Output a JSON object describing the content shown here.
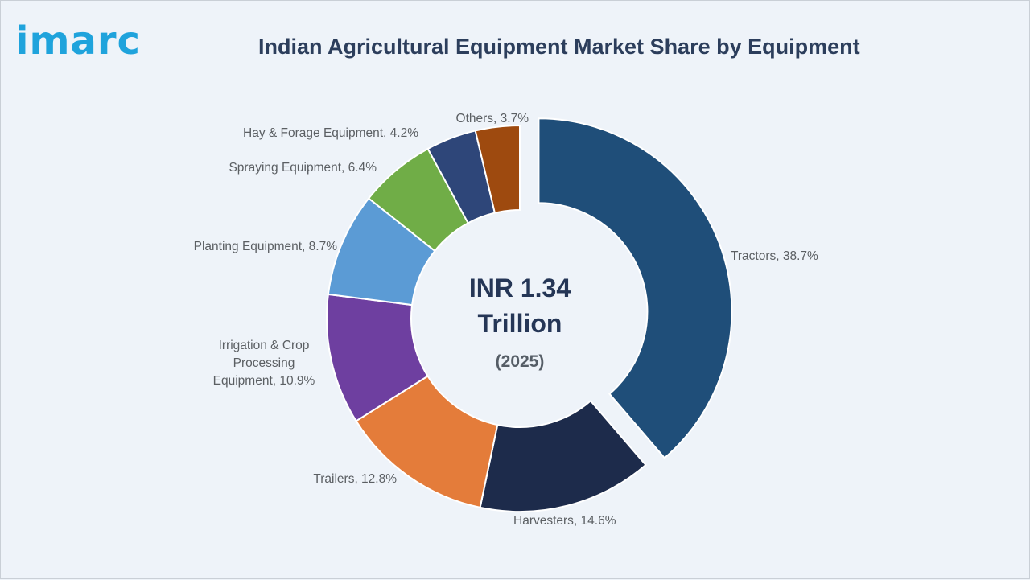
{
  "brand": {
    "logo_text": "imarc"
  },
  "colors": {
    "background": "#eef3f9",
    "title": "#2c3e5c",
    "logo": "#1fa3dc"
  },
  "chart_data": {
    "type": "donut",
    "title": "Indian Agricultural Equipment Market Share by Equipment",
    "center": {
      "value_line1": "INR 1.34",
      "value_line2": "Trillion",
      "year": "(2025)"
    },
    "unit": "%",
    "exploded": "Tractors",
    "slices": [
      {
        "label": "Tractors",
        "value": 38.7,
        "color": "#1f4e79",
        "label_lines": [
          "Tractors, 38.7%"
        ]
      },
      {
        "label": "Harvesters",
        "value": 14.6,
        "color": "#1d2b4b",
        "label_lines": [
          "Harvesters, 14.6%"
        ]
      },
      {
        "label": "Trailers",
        "value": 12.8,
        "color": "#e47c3a",
        "label_lines": [
          "Trailers, 12.8%"
        ]
      },
      {
        "label": "Irrigation & Crop Processing Equipment",
        "value": 10.9,
        "color": "#6e3fa0",
        "label_lines": [
          "Irrigation & Crop",
          "Processing",
          "Equipment, 10.9%"
        ]
      },
      {
        "label": "Planting Equipment",
        "value": 8.7,
        "color": "#5b9bd5",
        "label_lines": [
          "Planting Equipment, 8.7%"
        ]
      },
      {
        "label": "Spraying Equipment",
        "value": 6.4,
        "color": "#70ad47",
        "label_lines": [
          "Spraying Equipment, 6.4%"
        ]
      },
      {
        "label": "Hay & Forage Equipment",
        "value": 4.2,
        "color": "#2e4679",
        "label_lines": [
          "Hay & Forage Equipment, 4.2%"
        ]
      },
      {
        "label": "Others",
        "value": 3.7,
        "color": "#9e4a0f",
        "label_lines": [
          "Others, 3.7%"
        ]
      }
    ]
  }
}
